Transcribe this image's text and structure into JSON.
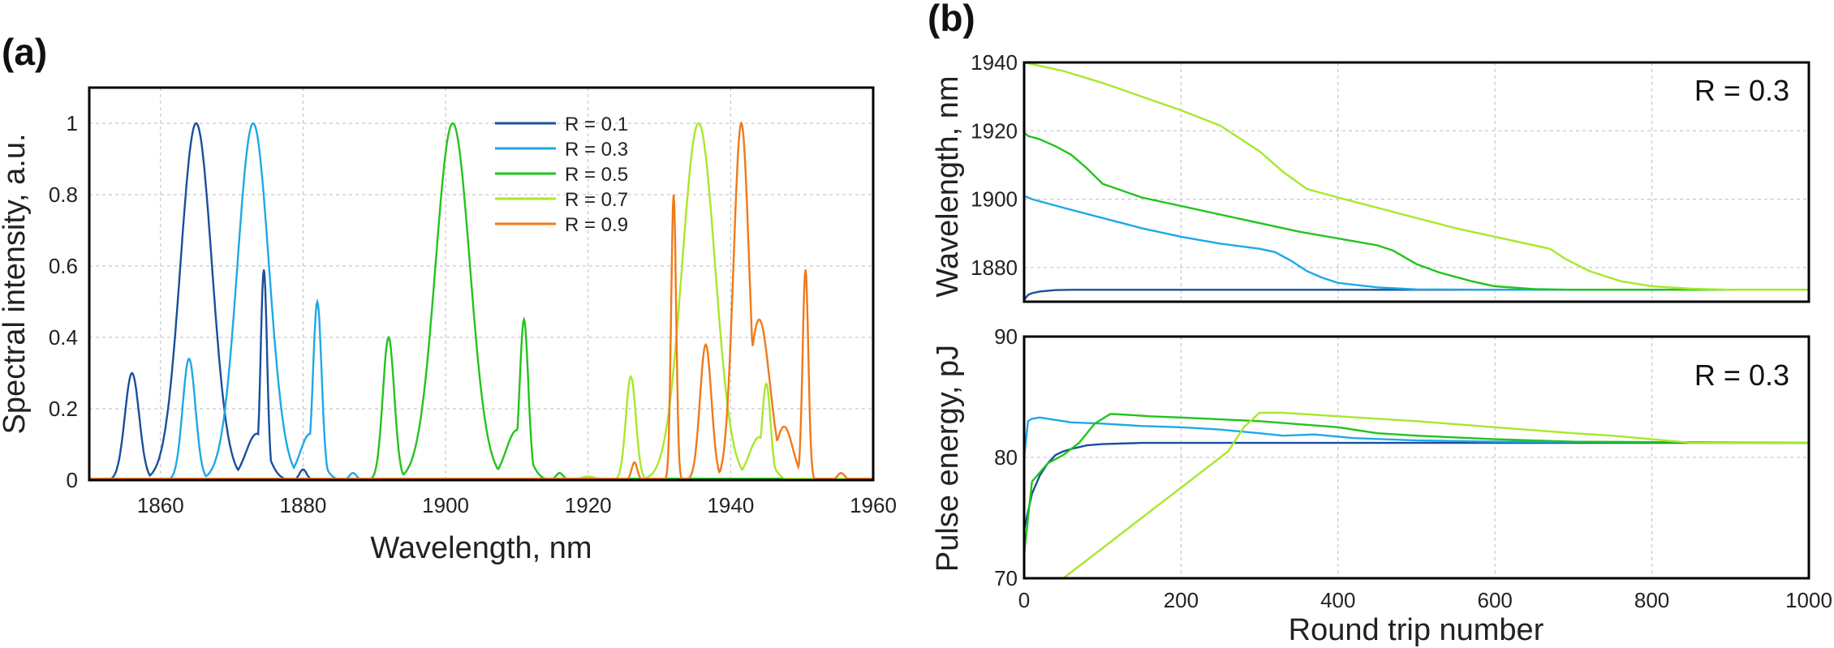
{
  "chart_data": [
    {
      "type": "line",
      "panel_label": "(a)",
      "title": "",
      "xlabel": "Wavelength, nm",
      "ylabel": "Spectral intensity, a.u.",
      "xlim": [
        1850,
        1960
      ],
      "ylim": [
        0,
        1.1
      ],
      "xticks": [
        1860,
        1880,
        1900,
        1920,
        1940,
        1960
      ],
      "yticks": [
        0,
        0.2,
        0.4,
        0.6,
        0.8,
        1
      ],
      "ytick_labels": [
        "0",
        "0.2",
        "0.4",
        "0.6",
        "0.8",
        "1"
      ],
      "grid": true,
      "legend_position": "top-center",
      "series": [
        {
          "name": "R = 0.1",
          "color": "#1a4f9c",
          "peaks": [
            [
              1856,
              0.3,
              1.0
            ],
            [
              1865,
              1.0,
              2.2
            ],
            [
              1874.5,
              0.59,
              0.45
            ],
            [
              1873.5,
              0.13,
              1.5
            ],
            [
              1880,
              0.03,
              0.5
            ]
          ]
        },
        {
          "name": "R = 0.3",
          "color": "#1ea8e6",
          "peaks": [
            [
              1864,
              0.34,
              0.9
            ],
            [
              1873,
              1.0,
              2.2
            ],
            [
              1882,
              0.5,
              0.6
            ],
            [
              1881,
              0.13,
              1.4
            ],
            [
              1887,
              0.02,
              0.5
            ]
          ]
        },
        {
          "name": "R = 0.5",
          "color": "#22c41c",
          "peaks": [
            [
              1892,
              0.4,
              0.8
            ],
            [
              1901,
              1.0,
              2.4
            ],
            [
              1911,
              0.45,
              0.6
            ],
            [
              1910,
              0.14,
              1.5
            ],
            [
              1916,
              0.02,
              0.5
            ]
          ]
        },
        {
          "name": "R = 0.7",
          "color": "#a8e82a",
          "peaks": [
            [
              1926,
              0.29,
              0.7
            ],
            [
              1935.5,
              1.0,
              2.3
            ],
            [
              1945,
              0.27,
              0.6
            ],
            [
              1944,
              0.12,
              1.4
            ],
            [
              1920,
              0.01,
              1.0
            ]
          ]
        },
        {
          "name": "R = 0.9",
          "color": "#f07a1a",
          "peaks": [
            [
              1926.5,
              0.05,
              0.4
            ],
            [
              1932,
              0.8,
              0.35
            ],
            [
              1936.5,
              0.38,
              0.8
            ],
            [
              1941.5,
              1.0,
              1.1
            ],
            [
              1944,
              0.45,
              1.5
            ],
            [
              1950.5,
              0.59,
              0.4
            ],
            [
              1947.5,
              0.15,
              1.2
            ],
            [
              1955.5,
              0.02,
              0.5
            ]
          ]
        }
      ]
    },
    {
      "type": "line",
      "panel_label": "(b)",
      "annotation": "R = 0.3",
      "xlabel": "",
      "ylabel": "Wavelength, nm",
      "xlim": [
        0,
        1000
      ],
      "ylim": [
        1870,
        1940
      ],
      "yticks": [
        1880,
        1900,
        1920,
        1940
      ],
      "grid": true,
      "series": [
        {
          "name": "R = 0.1",
          "color": "#1a4f9c",
          "x": [
            0,
            5,
            10,
            20,
            40,
            60,
            100,
            1000
          ],
          "y": [
            1870.5,
            1872,
            1872.5,
            1873,
            1873.4,
            1873.5,
            1873.5,
            1873.5
          ]
        },
        {
          "name": "R = 0.3",
          "color": "#1ea8e6",
          "x": [
            0,
            10,
            50,
            100,
            150,
            200,
            250,
            300,
            320,
            340,
            360,
            380,
            400,
            450,
            500,
            600,
            1000
          ],
          "y": [
            1901,
            1900,
            1897.5,
            1894.5,
            1891.5,
            1889,
            1887,
            1885.5,
            1884.5,
            1882,
            1879,
            1877,
            1875.5,
            1874.2,
            1873.6,
            1873.5,
            1873.5
          ]
        },
        {
          "name": "R = 0.5",
          "color": "#22c41c",
          "x": [
            0,
            5,
            20,
            40,
            60,
            80,
            100,
            150,
            200,
            300,
            350,
            400,
            450,
            470,
            500,
            530,
            570,
            600,
            650,
            700,
            1000
          ],
          "y": [
            1919.5,
            1918.5,
            1917.5,
            1915.5,
            1913,
            1909,
            1904.5,
            1900.5,
            1898,
            1893,
            1890.5,
            1888.5,
            1886.5,
            1885,
            1881,
            1878.5,
            1876,
            1874.5,
            1873.7,
            1873.5,
            1873.5
          ]
        },
        {
          "name": "R = 0.7",
          "color": "#a8e82a",
          "x": [
            0,
            50,
            100,
            150,
            200,
            250,
            300,
            330,
            360,
            400,
            450,
            500,
            550,
            600,
            640,
            670,
            690,
            720,
            760,
            800,
            850,
            900,
            1000
          ],
          "y": [
            1940,
            1937.5,
            1934,
            1930,
            1926,
            1921.5,
            1914,
            1908,
            1903,
            1900.5,
            1897.5,
            1894.5,
            1891.5,
            1889,
            1887,
            1885.5,
            1882.5,
            1879,
            1876,
            1874.5,
            1873.8,
            1873.5,
            1873.5
          ]
        }
      ]
    },
    {
      "type": "line",
      "annotation": "R = 0.3",
      "xlabel": "Round trip number",
      "ylabel": "Pulse energy, pJ",
      "xlim": [
        0,
        1000
      ],
      "ylim": [
        70,
        90
      ],
      "xticks": [
        0,
        200,
        400,
        600,
        800,
        1000
      ],
      "yticks": [
        70,
        80,
        90
      ],
      "grid": true,
      "series": [
        {
          "name": "R = 0.1",
          "color": "#1a4f9c",
          "x": [
            0,
            10,
            20,
            30,
            40,
            50,
            60,
            80,
            100,
            150,
            200,
            1000
          ],
          "y": [
            74,
            77,
            78.5,
            79.5,
            80.2,
            80.5,
            80.7,
            81,
            81.1,
            81.2,
            81.2,
            81.2
          ]
        },
        {
          "name": "R = 0.3",
          "color": "#1ea8e6",
          "x": [
            0,
            5,
            10,
            20,
            40,
            60,
            100,
            150,
            200,
            250,
            300,
            330,
            370,
            420,
            500,
            600,
            1000
          ],
          "y": [
            80,
            83,
            83.2,
            83.3,
            83.1,
            82.9,
            82.8,
            82.6,
            82.5,
            82.3,
            82.0,
            81.8,
            81.9,
            81.6,
            81.4,
            81.3,
            81.2
          ]
        },
        {
          "name": "R = 0.5",
          "color": "#22c41c",
          "x": [
            0,
            10,
            30,
            50,
            70,
            90,
            110,
            140,
            160,
            200,
            300,
            400,
            450,
            500,
            600,
            700,
            1000
          ],
          "y": [
            72,
            78,
            79.5,
            80.2,
            81.2,
            82.8,
            83.6,
            83.5,
            83.4,
            83.3,
            83,
            82.5,
            82,
            81.8,
            81.5,
            81.3,
            81.2
          ]
        },
        {
          "name": "R = 0.7",
          "color": "#a8e82a",
          "x": [
            50,
            100,
            150,
            200,
            240,
            260,
            280,
            300,
            330,
            400,
            500,
            600,
            700,
            750,
            800,
            850,
            1000
          ],
          "y": [
            70,
            72.5,
            75,
            77.5,
            79.5,
            80.5,
            82.5,
            83.7,
            83.7,
            83.4,
            83,
            82.5,
            82,
            81.8,
            81.5,
            81.2,
            81.2
          ]
        }
      ]
    }
  ]
}
